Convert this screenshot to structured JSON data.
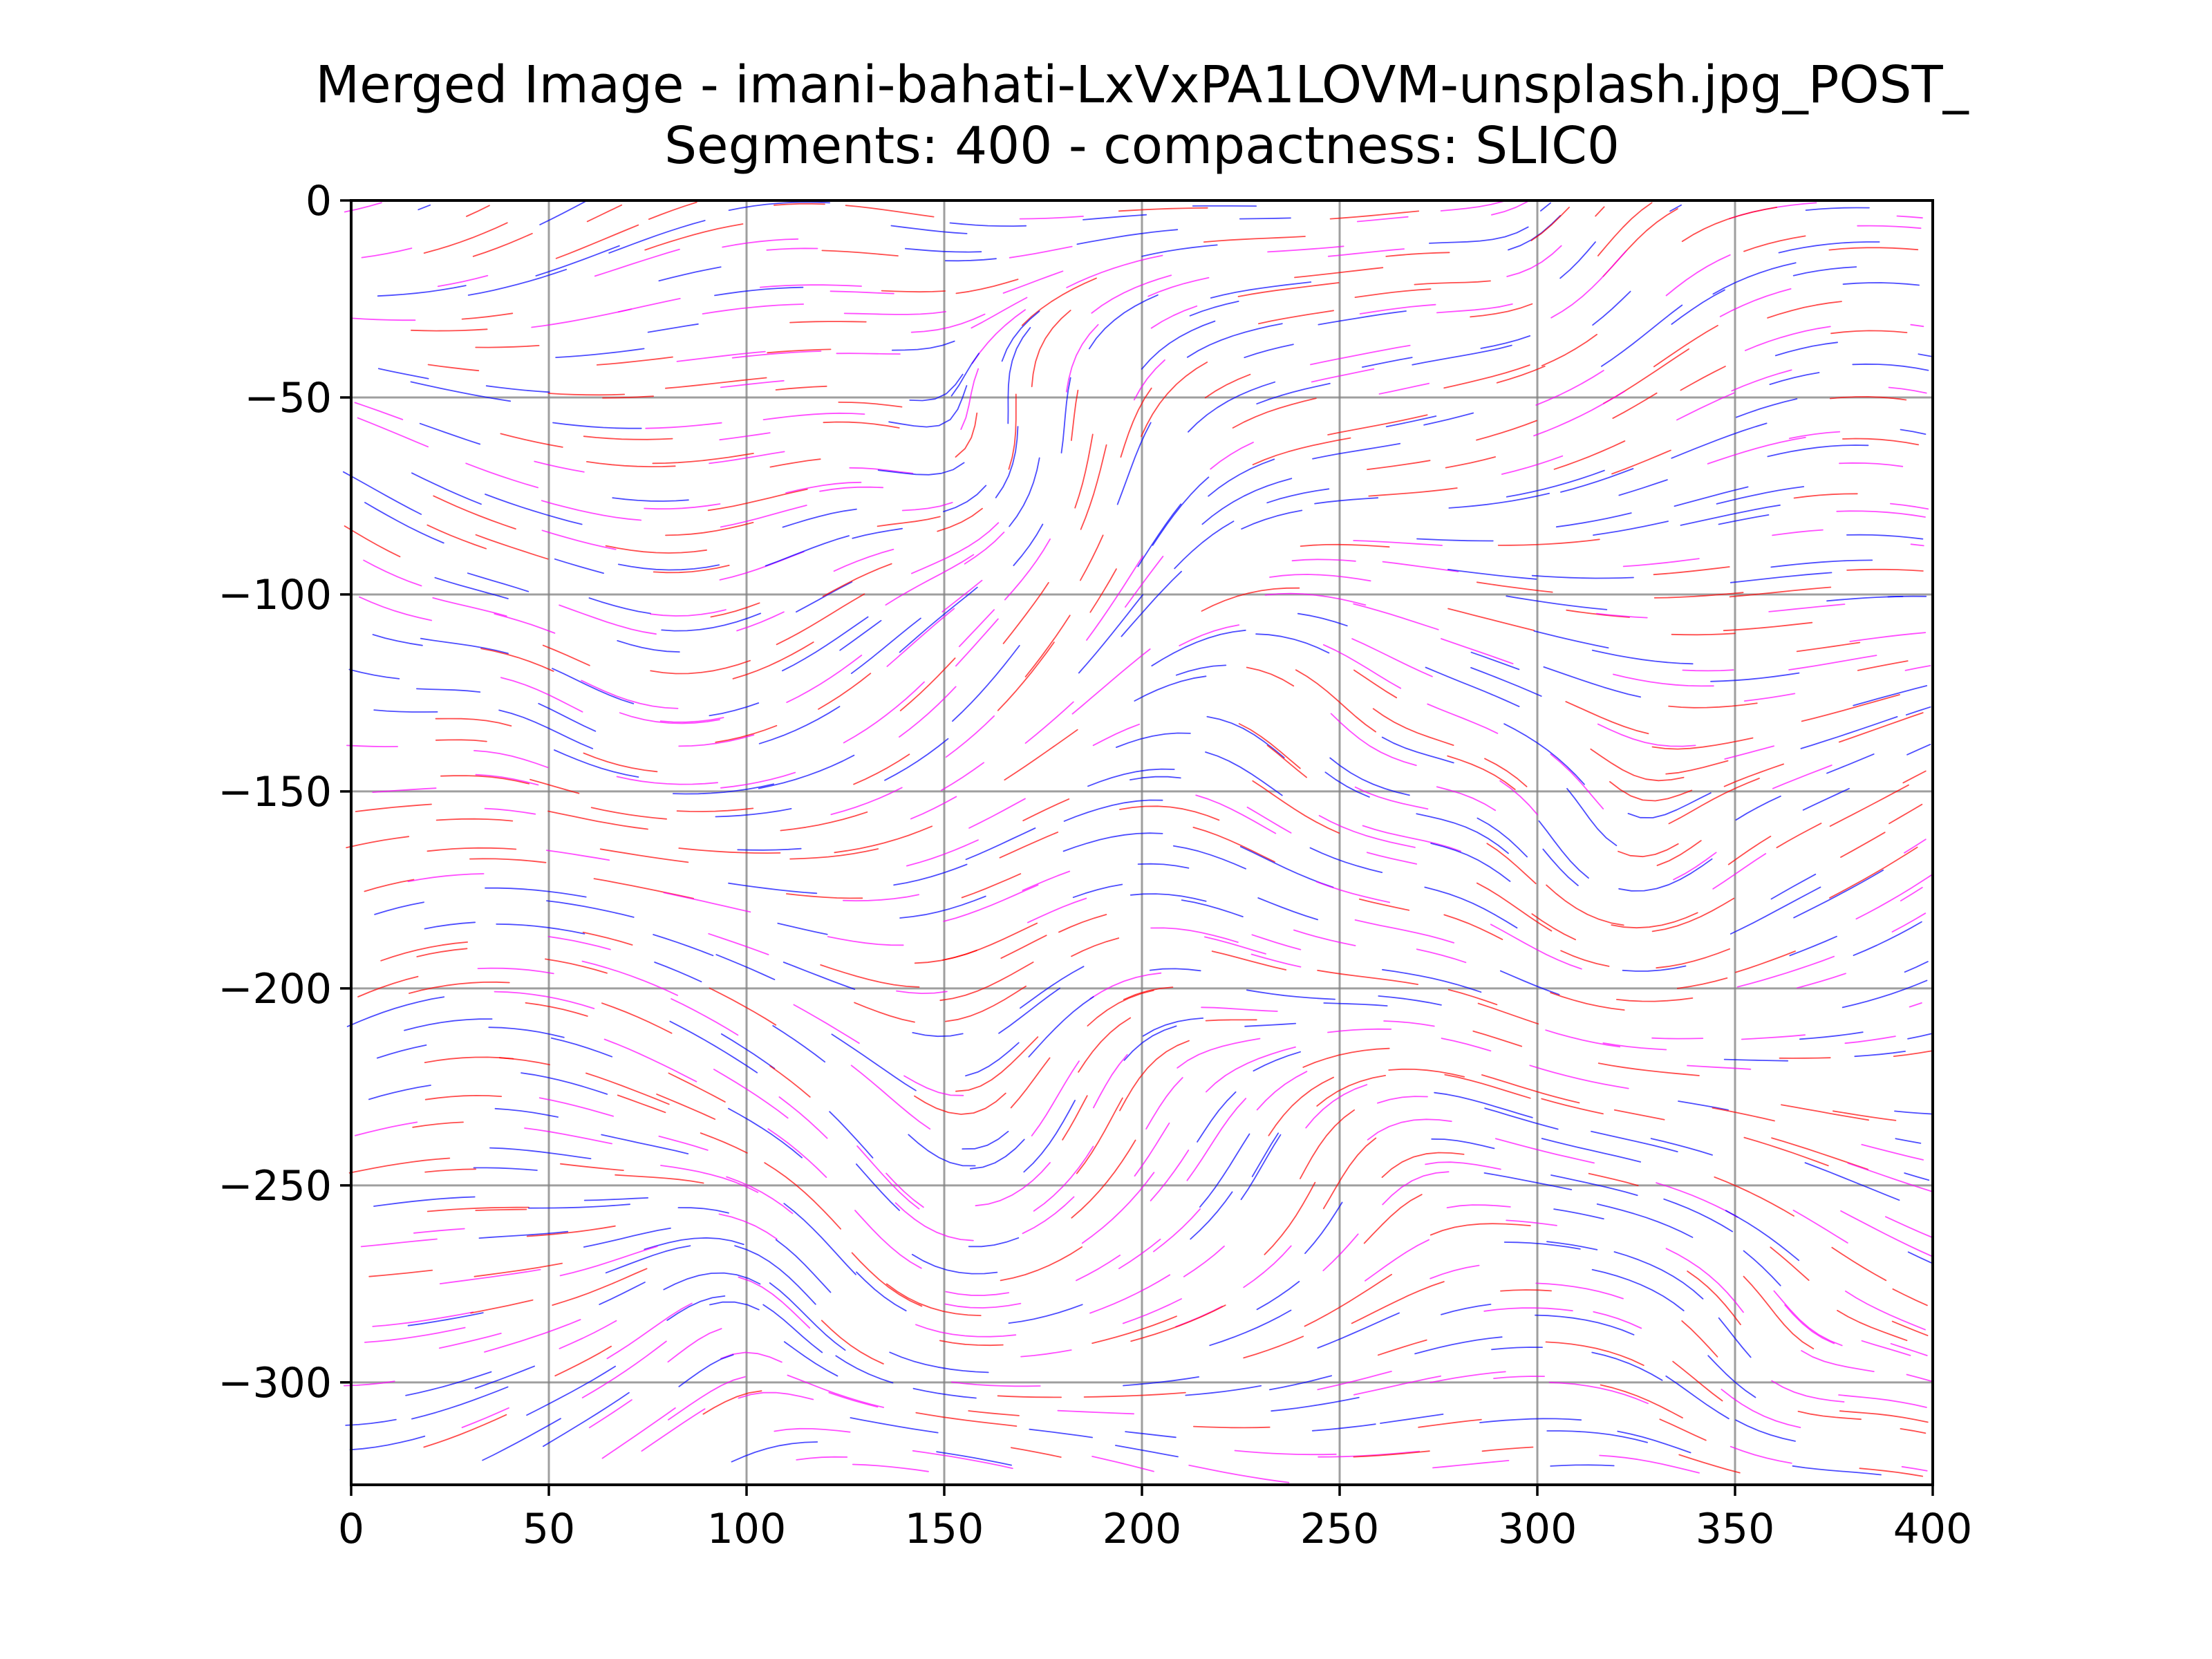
{
  "chart_data": {
    "type": "streamplot",
    "title_lines": [
      "Merged Image - imani-bahati-LxVxPA1LOVM-unsplash.jpg_POST_",
      "Segments: 400 - compactness: SLIC0"
    ],
    "xlabel": "",
    "ylabel": "",
    "xlim": [
      0,
      400
    ],
    "ylim": [
      -326,
      0
    ],
    "x_ticks": [
      0,
      50,
      100,
      150,
      200,
      250,
      300,
      350,
      400
    ],
    "y_ticks": [
      0,
      -50,
      -100,
      -150,
      -200,
      -250,
      -300
    ],
    "x_tick_labels": [
      "0",
      "50",
      "100",
      "150",
      "200",
      "250",
      "300",
      "350",
      "400"
    ],
    "y_tick_labels": [
      "0",
      "−50",
      "−100",
      "−150",
      "−200",
      "−250",
      "−300"
    ],
    "grid": true,
    "series": [
      {
        "color": "#ff0000"
      },
      {
        "color": "#0000ff"
      },
      {
        "color": "#ff00ff"
      }
    ]
  }
}
